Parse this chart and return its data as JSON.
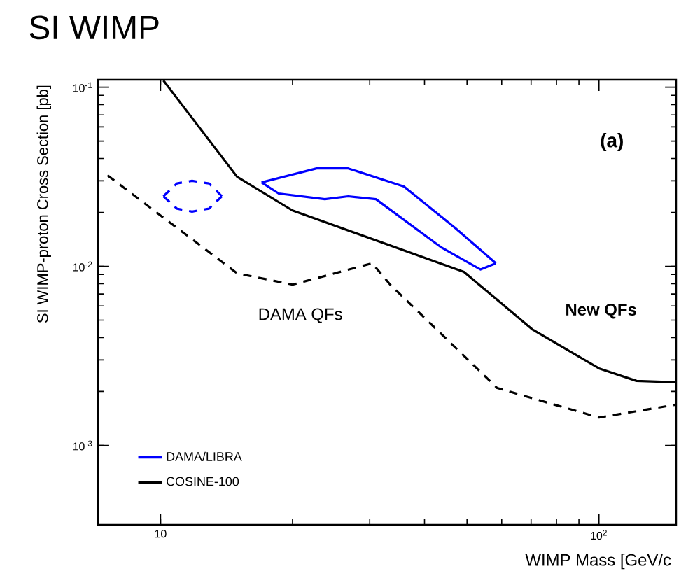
{
  "chart_data": {
    "type": "line",
    "title": "SI WIMP",
    "xlabel": "WIMP Mass [GeV/c",
    "ylabel": "SI WIMP-proton Cross Section [pb]",
    "log": "xy",
    "xlim": [
      7.2,
      150
    ],
    "ylim": [
      0.00036,
      0.11
    ],
    "xticks": [
      10,
      {
        "value": 100,
        "label": "10$^{2}$"
      }
    ],
    "yticks": [
      {
        "value": 0.001,
        "label": "10$^{-3}$"
      },
      {
        "value": 0.01,
        "label": "10$^{-2}$"
      },
      {
        "value": 0.1,
        "label": "10$^{-1}$"
      }
    ],
    "legend": "bottom left",
    "series": [
      {
        "name": "DAMA/LIBRA",
        "color": "#0000ff",
        "line_style": "solid",
        "x": [
          17.0,
          22.7,
          26.8,
          35.9,
          47.1,
          58.2
        ],
        "values": [
          0.0294,
          0.0352,
          0.0352,
          0.0279,
          0.0163,
          0.0104
        ]
      },
      {
        "color": "#0000ff",
        "line_style": "solid",
        "x": [
          17.0,
          18.6,
          23.7,
          26.8,
          31.0,
          43.8,
          53.7,
          58.2
        ],
        "values": [
          0.0294,
          0.0255,
          0.0237,
          0.0246,
          0.0237,
          0.0127,
          0.0096,
          0.0104
        ]
      },
      {
        "color": "#0000ff",
        "line_style": "dashed",
        "x": [
          10.15,
          10.9,
          11.8,
          12.9,
          13.8
        ],
        "values": [
          0.0246,
          0.029,
          0.03,
          0.029,
          0.0246
        ]
      },
      {
        "color": "#0000ff",
        "line_style": "dashed",
        "x": [
          10.15,
          10.9,
          11.8,
          12.9,
          13.8
        ],
        "values": [
          0.0246,
          0.021,
          0.0202,
          0.021,
          0.0246
        ]
      },
      {
        "name": "COSINE-100",
        "color": "#000000",
        "line_style": "solid",
        "x": [
          10.15,
          14.95,
          20.0,
          49.2,
          70.4,
          100,
          121.8,
          150
        ],
        "values": [
          0.109,
          0.0316,
          0.0205,
          0.0093,
          0.00445,
          0.00269,
          0.00229,
          0.00225
        ]
      },
      {
        "color": "#000000",
        "line_style": "dashed",
        "x": [
          7.57,
          14.95,
          20.0,
          30.4,
          33.4,
          58.6,
          100,
          150
        ],
        "values": [
          0.0322,
          0.00914,
          0.0079,
          0.0104,
          0.0079,
          0.00209,
          0.00143,
          0.00169
        ]
      }
    ],
    "annotations": [
      "(a)",
      "DAMA QFs",
      "New QFs"
    ]
  }
}
